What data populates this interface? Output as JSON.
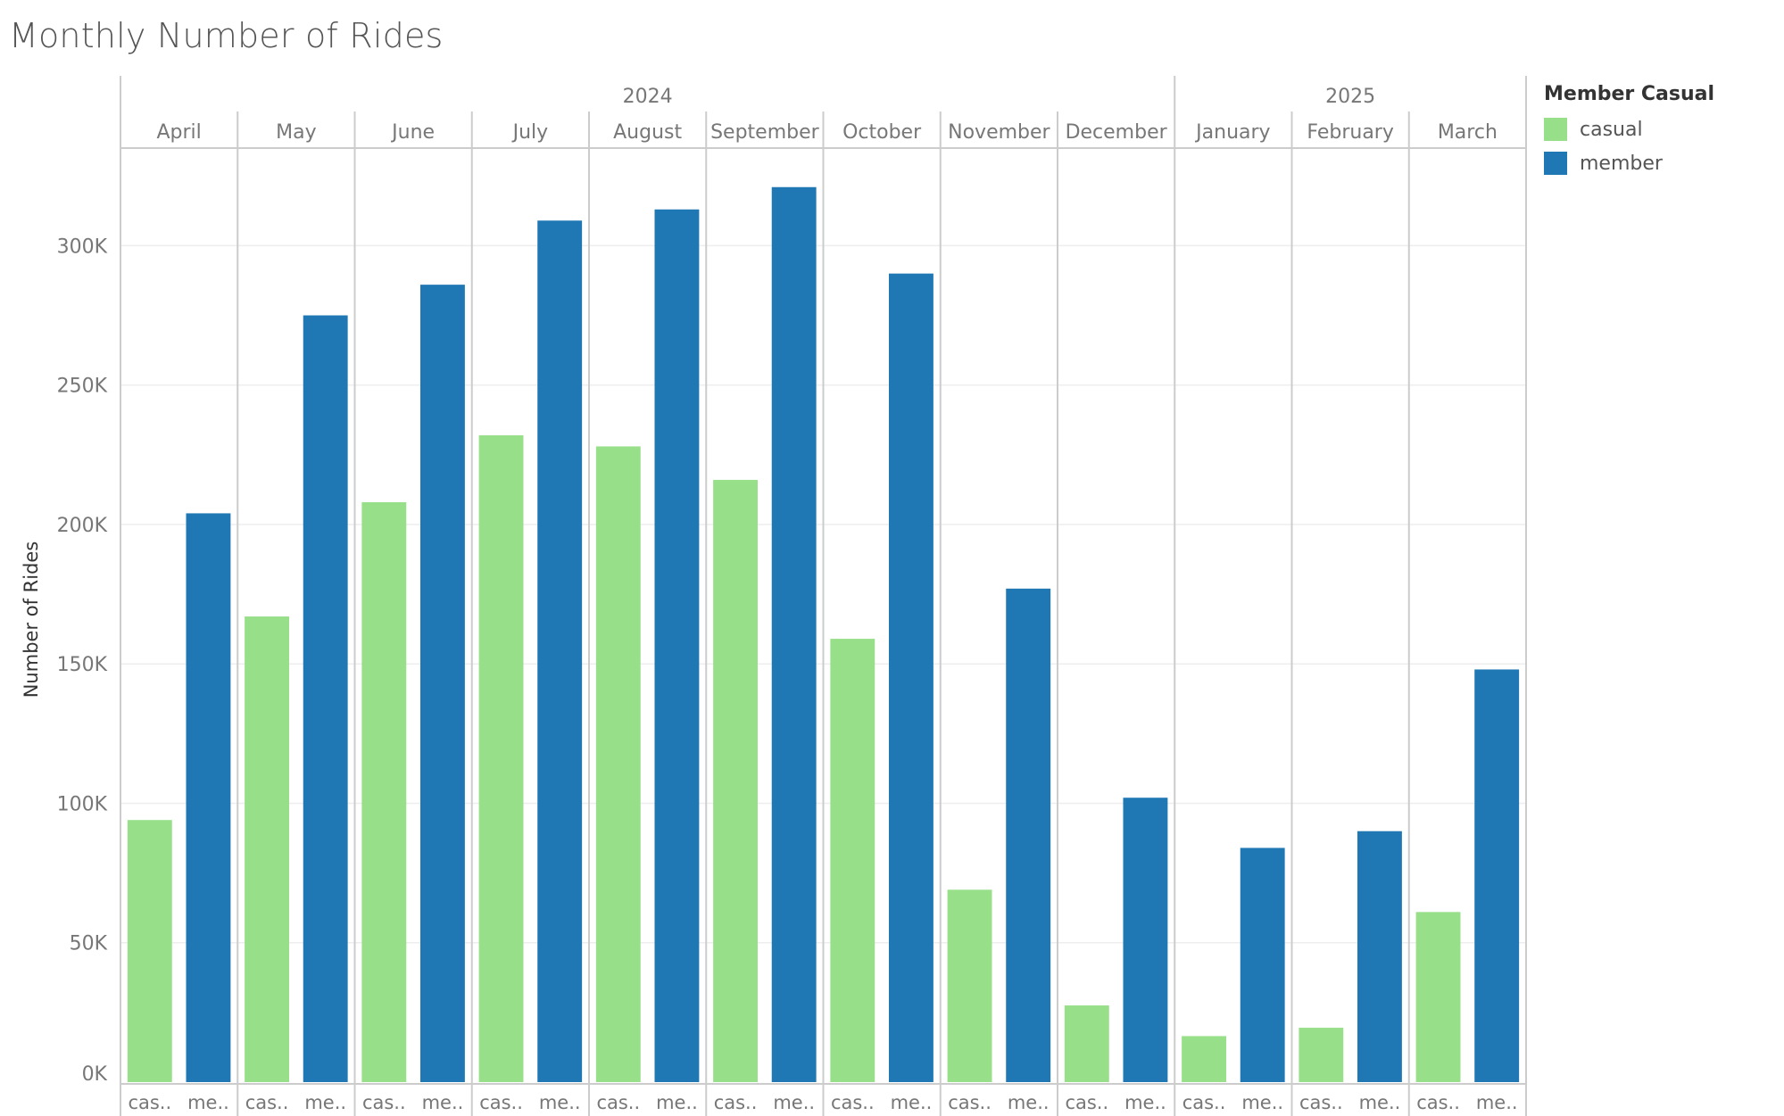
{
  "chart_data": {
    "type": "bar",
    "title": "Monthly Number of Rides",
    "ylabel": "Number of Rides",
    "xlabel": "",
    "ylim": [
      0,
      335000
    ],
    "y_ticks": [
      0,
      50000,
      100000,
      150000,
      200000,
      250000,
      300000
    ],
    "y_tick_labels": [
      "0K",
      "50K",
      "100K",
      "150K",
      "200K",
      "250K",
      "300K"
    ],
    "grid": true,
    "legend_position": "right",
    "years": [
      {
        "label": "2024",
        "months": 9
      },
      {
        "label": "2025",
        "months": 3
      }
    ],
    "categories": [
      "April",
      "May",
      "June",
      "July",
      "August",
      "September",
      "October",
      "November",
      "December",
      "January",
      "February",
      "March"
    ],
    "sub_labels": [
      "cas..",
      "me.."
    ],
    "series": [
      {
        "name": "casual",
        "color": "#98df8a",
        "values": [
          94000,
          167000,
          208000,
          232000,
          228000,
          216000,
          159000,
          69000,
          27500,
          16500,
          19500,
          61000
        ]
      },
      {
        "name": "member",
        "color": "#1f77b4",
        "values": [
          204000,
          275000,
          286000,
          309000,
          313000,
          321000,
          290000,
          177000,
          102000,
          84000,
          90000,
          148000
        ]
      }
    ]
  },
  "legend": {
    "title": "Member Casual",
    "items": [
      {
        "label": "casual",
        "color": "#98df8a"
      },
      {
        "label": "member",
        "color": "#1f77b4"
      }
    ]
  }
}
